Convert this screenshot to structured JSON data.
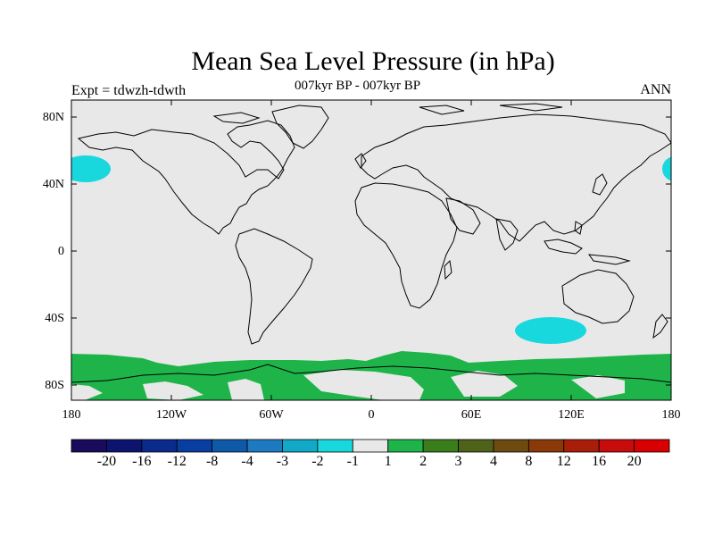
{
  "header": {
    "title": "Mean Sea Level Pressure (in hPa)",
    "subtitle": "007kyr BP - 007kyr BP",
    "left_label": "Expt = tdwzh-tdwth",
    "right_label": "ANN"
  },
  "axes": {
    "lat_labels": [
      "80N",
      "40N",
      "0",
      "40S",
      "80S"
    ],
    "lon_labels": [
      "180",
      "120W",
      "60W",
      "0",
      "60E",
      "120E",
      "180"
    ]
  },
  "colorbar": {
    "labels": [
      "-20",
      "-16",
      "-12",
      "-8",
      "-4",
      "-3",
      "-2",
      "-1",
      "1",
      "2",
      "3",
      "4",
      "8",
      "12",
      "16",
      "20"
    ],
    "colors": [
      "#1a0a5c",
      "#0c1470",
      "#0a2a8c",
      "#083ea0",
      "#0f5aa8",
      "#1e7ac0",
      "#12a8c8",
      "#18d8de",
      "#e8e8e8",
      "#1eb44a",
      "#3a7e1c",
      "#4e621a",
      "#6c4a10",
      "#8a3a08",
      "#a81e08",
      "#c80c0c",
      "#d80000"
    ]
  },
  "map": {
    "ocean_color": "#e8e8e8",
    "positive_color": "#1eb44a",
    "negative_color": "#18d8de"
  }
}
